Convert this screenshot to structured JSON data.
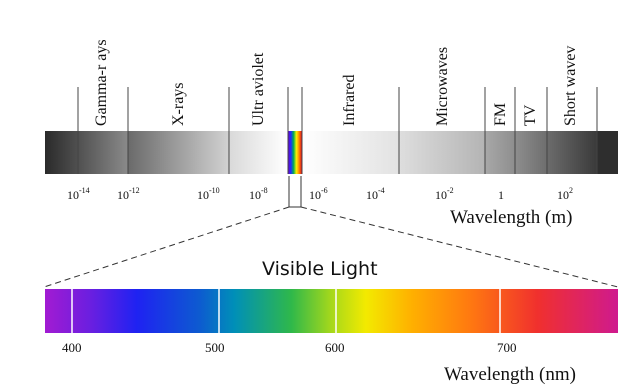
{
  "em_spectrum": {
    "bands": [
      {
        "label": "Gamma-r ays"
      },
      {
        "label": "X-rays"
      },
      {
        "label": "Ultr aviolet"
      },
      {
        "label": "Infrared"
      },
      {
        "label": "Microwaves"
      },
      {
        "label": "FM"
      },
      {
        "label": "TV"
      },
      {
        "label": "Short  wavev"
      }
    ],
    "ticks": [
      {
        "base": "10",
        "exp": "-14"
      },
      {
        "base": "10",
        "exp": "-12"
      },
      {
        "base": "10",
        "exp": "-10"
      },
      {
        "base": "10",
        "exp": "-8"
      },
      {
        "base": "10",
        "exp": "-6"
      },
      {
        "base": "10",
        "exp": "-4"
      },
      {
        "base": "10",
        "exp": "-2"
      },
      {
        "base": "1",
        "exp": ""
      },
      {
        "base": "10",
        "exp": "2"
      }
    ],
    "axis_title": "Wavelength (m)"
  },
  "visible": {
    "title": "Visible Light",
    "ticks": [
      "400",
      "500",
      "600",
      "700"
    ],
    "axis_title": "Wavelength (nm)"
  },
  "colors": {
    "divider": "#444444",
    "band_lines": "#ffffff",
    "dash": "#333333"
  }
}
